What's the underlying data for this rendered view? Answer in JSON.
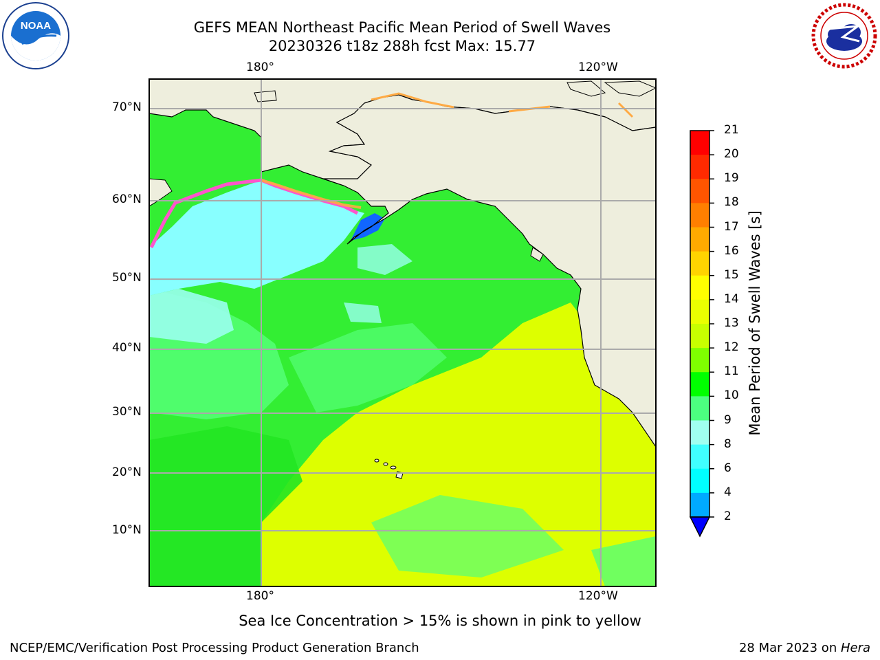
{
  "title_line1": "GEFS MEAN Northeast Pacific Mean Period of Swell Waves",
  "title_line2": "20230326 t18z 288h fcst   Max: 15.77",
  "lon_labels": [
    "180°",
    "120°W"
  ],
  "lat_labels": [
    "70°N",
    "60°N",
    "50°N",
    "40°N",
    "30°N",
    "20°N",
    "10°N"
  ],
  "colorbar": {
    "label": "Mean Period of Swell Waves [s]",
    "ticks": [
      "21",
      "20",
      "19",
      "18",
      "17",
      "16",
      "15",
      "14",
      "13",
      "12",
      "11",
      "10",
      "9",
      "8",
      "6",
      "4",
      "2"
    ],
    "colors": [
      "#ff0000",
      "#ff2a00",
      "#ff5500",
      "#ff7f00",
      "#ffaa00",
      "#ffd400",
      "#ffff00",
      "#eaff00",
      "#c8ff00",
      "#7fff00",
      "#00ff00",
      "#4cff80",
      "#a0fff0",
      "#40ffff",
      "#00ffff",
      "#00aaff",
      "#0066ff",
      "#0000ff"
    ]
  },
  "map_colors": {
    "land": "#eeeedd",
    "ocean_green": "#33ee33",
    "ocean_light_green": "#55ff77",
    "ocean_yellow": "#ddff00",
    "ocean_cyan": "#88ffff",
    "ice_pink": "#ff55cc",
    "ice_orange": "#ffaa44",
    "grid": "#aaaaaa"
  },
  "note": "Sea Ice Concentration > 15% is shown in pink to yellow",
  "footer_left": "NCEP/EMC/Verification Post Processing Product Generation Branch",
  "footer_date": "28 Mar 2023 on ",
  "footer_host": "Hera",
  "logos": {
    "left": "NOAA",
    "right": "NATIONAL WEATHER SERVICE"
  }
}
